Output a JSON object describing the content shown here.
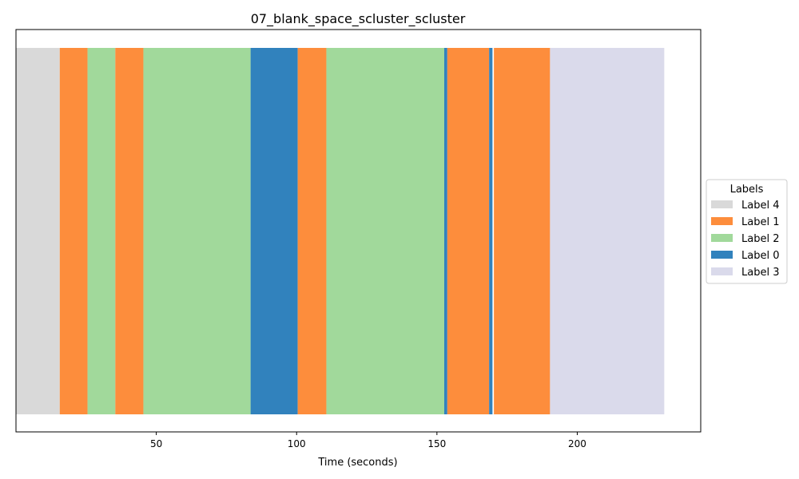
{
  "chart_data": {
    "type": "bar",
    "orientation": "horizontal-timeline",
    "title": "07_blank_space_scluster_scluster",
    "xlabel": "Time (seconds)",
    "ylabel": "",
    "xlim": [
      0,
      244
    ],
    "xticks": [
      50,
      100,
      150,
      200
    ],
    "grid": false,
    "legend": {
      "title": "Labels",
      "placement": "right",
      "entries": [
        {
          "label": "Label 4",
          "color": "#d9d9d9"
        },
        {
          "label": "Label 1",
          "color": "#fd8d3c"
        },
        {
          "label": "Label 2",
          "color": "#a1d99b"
        },
        {
          "label": "Label 0",
          "color": "#3182bd"
        },
        {
          "label": "Label 3",
          "color": "#dadaeb"
        }
      ]
    },
    "segments": [
      {
        "label": "Label 4",
        "start": 0,
        "end": 15.6
      },
      {
        "label": "Label 1",
        "start": 15.6,
        "end": 25.5
      },
      {
        "label": "Label 2",
        "start": 25.5,
        "end": 35.4
      },
      {
        "label": "Label 1",
        "start": 35.4,
        "end": 45.4
      },
      {
        "label": "Label 2",
        "start": 45.4,
        "end": 83.6
      },
      {
        "label": "Label 0",
        "start": 83.6,
        "end": 100.4
      },
      {
        "label": "Label 1",
        "start": 100.4,
        "end": 110.6
      },
      {
        "label": "Label 2",
        "start": 110.6,
        "end": 152.6
      },
      {
        "label": "Label 0",
        "start": 152.6,
        "end": 153.7
      },
      {
        "label": "Label 1",
        "start": 153.7,
        "end": 168.6
      },
      {
        "label": "Label 0",
        "start": 168.6,
        "end": 169.8
      },
      {
        "label": "Label 1",
        "start": 170.3,
        "end": 190.3
      },
      {
        "label": "Label 3",
        "start": 190.3,
        "end": 231.0
      }
    ]
  }
}
